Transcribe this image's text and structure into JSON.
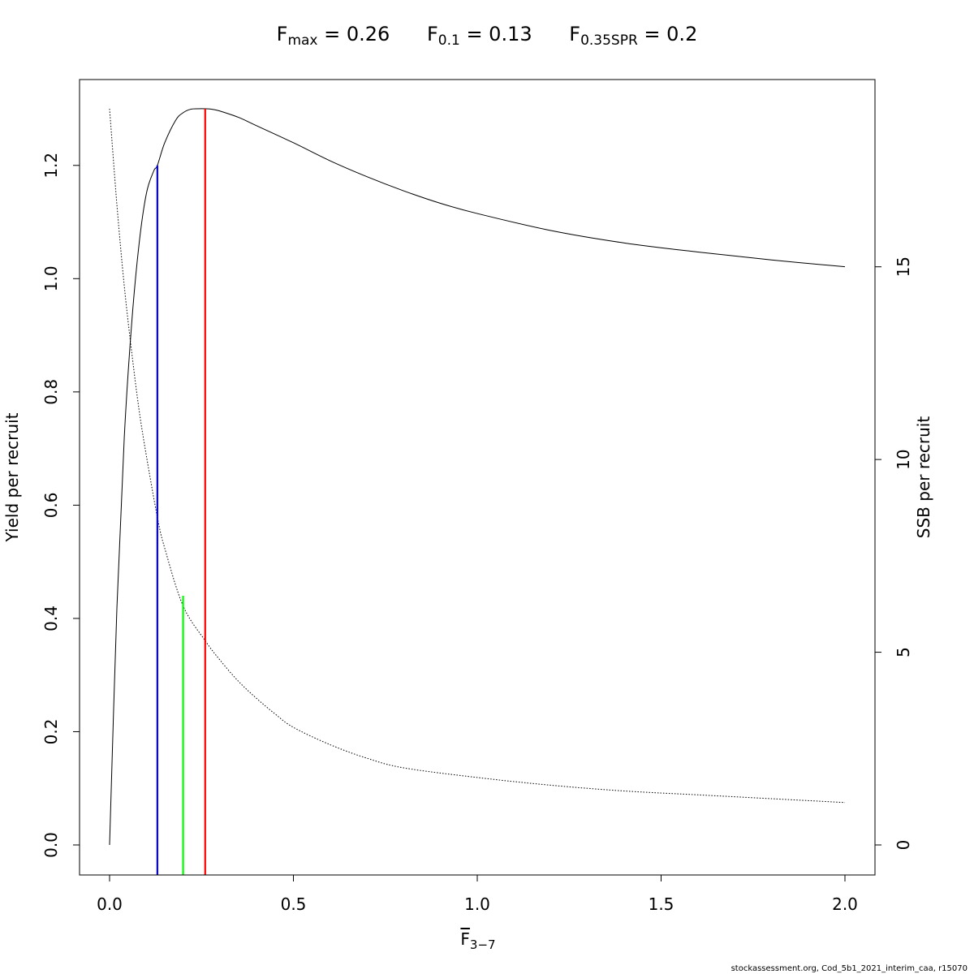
{
  "title_terms": [
    {
      "base": "F",
      "sub": "max",
      "rest": " = 0.26"
    },
    {
      "base": "F",
      "sub": "0.1",
      "rest": " = 0.13"
    },
    {
      "base": "F",
      "sub": "0.35SPR",
      "rest": " = 0.2"
    }
  ],
  "xlabel": {
    "base": "F",
    "sub": "3−7"
  },
  "credit": "stockassessment.org, Cod_5b1_2021_interim_caa, r15070",
  "chart_data": {
    "type": "line",
    "xlim": [
      0,
      2
    ],
    "ylim_left": [
      0,
      1.3
    ],
    "ylim_right": [
      0,
      19.1
    ],
    "ylabel_left": "Yield per recruit",
    "ylabel_right": "SSB per recruit",
    "x_ticks": [
      "0.0",
      "0.5",
      "1.0",
      "1.5",
      "2.0"
    ],
    "y_ticks_left": [
      "0.0",
      "0.2",
      "0.4",
      "0.6",
      "0.8",
      "1.0",
      "1.2"
    ],
    "y_ticks_right": [
      "0",
      "5",
      "10",
      "15"
    ],
    "grid": false,
    "series": [
      {
        "axis": "left",
        "style": "solid",
        "color": "#000000",
        "x": [
          0,
          0.02,
          0.04,
          0.06,
          0.08,
          0.1,
          0.12,
          0.13,
          0.15,
          0.18,
          0.2,
          0.22,
          0.24,
          0.26,
          0.28,
          0.3,
          0.35,
          0.4,
          0.5,
          0.6,
          0.7,
          0.8,
          0.9,
          1.0,
          1.2,
          1.4,
          1.6,
          1.8,
          2.0
        ],
        "y": [
          0,
          0.42,
          0.72,
          0.92,
          1.06,
          1.15,
          1.19,
          1.2,
          1.24,
          1.28,
          1.293,
          1.299,
          1.3,
          1.3,
          1.299,
          1.296,
          1.285,
          1.27,
          1.24,
          1.208,
          1.18,
          1.155,
          1.133,
          1.115,
          1.085,
          1.063,
          1.047,
          1.033,
          1.021
        ]
      },
      {
        "axis": "right",
        "style": "dotted",
        "color": "#000000",
        "x": [
          0,
          0.02,
          0.04,
          0.06,
          0.08,
          0.1,
          0.13,
          0.15,
          0.2,
          0.26,
          0.3,
          0.35,
          0.4,
          0.45,
          0.5,
          0.6,
          0.7,
          0.8,
          1.0,
          1.2,
          1.4,
          1.6,
          1.8,
          2.0
        ],
        "y": [
          19.1,
          16.6,
          14.5,
          12.8,
          11.3,
          10.1,
          8.5,
          7.7,
          6.2,
          5.3,
          4.8,
          4.25,
          3.8,
          3.4,
          3.05,
          2.6,
          2.25,
          2.0,
          1.75,
          1.55,
          1.4,
          1.3,
          1.2,
          1.1
        ]
      }
    ],
    "reference_lines": [
      {
        "label": "Fmax",
        "x": 0.26,
        "top": 1.3,
        "color": "#ff0000"
      },
      {
        "label": "F0.1",
        "x": 0.13,
        "top": 1.2,
        "color": "#0000ff"
      },
      {
        "label": "F0.35SPR",
        "x": 0.2,
        "top": 0.44,
        "color": "#00ff00"
      }
    ]
  }
}
